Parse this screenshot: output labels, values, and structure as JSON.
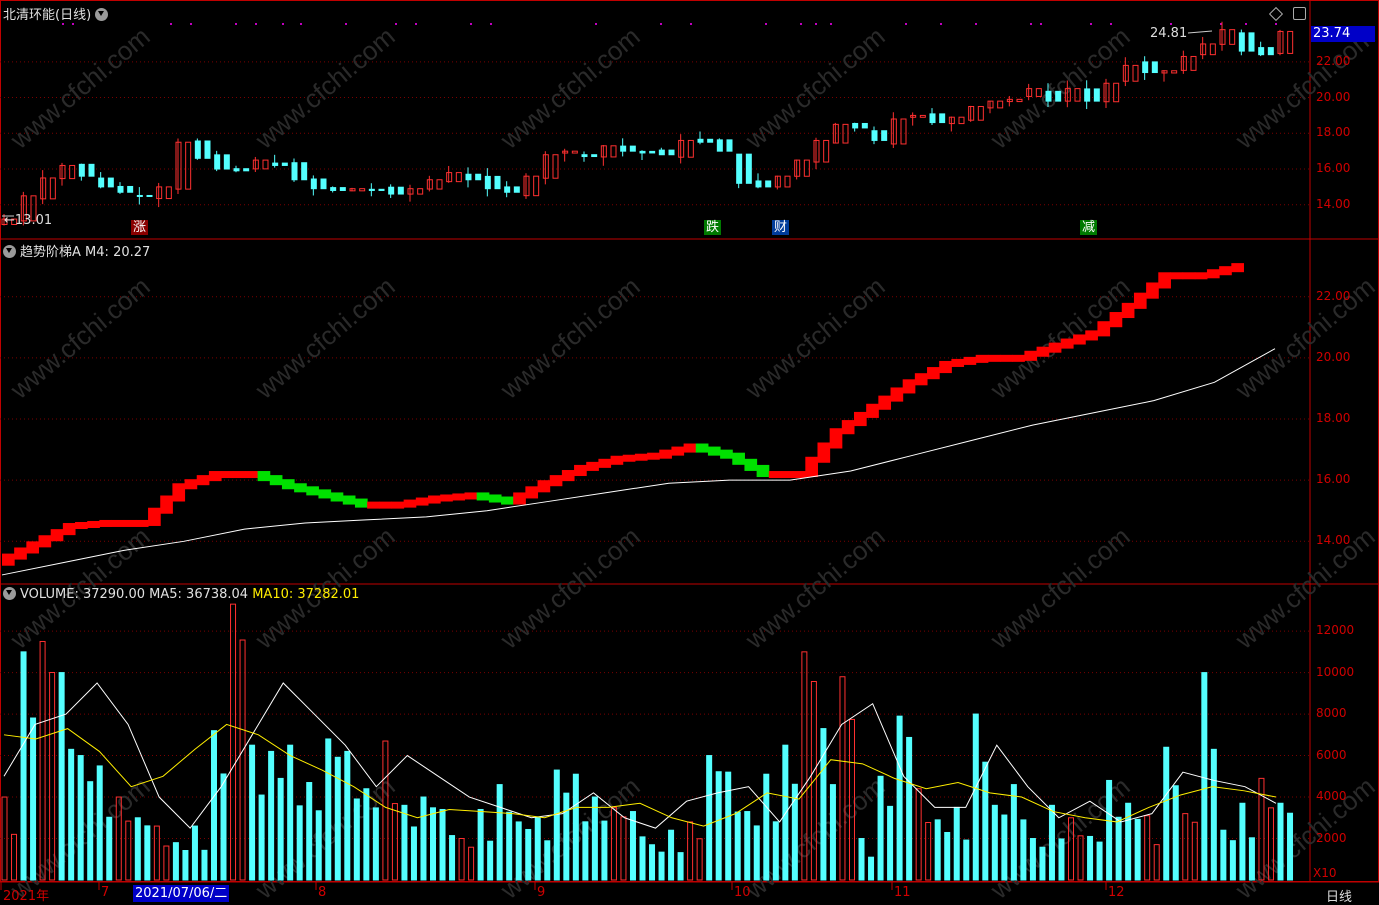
{
  "header": {
    "stock_name": "北清环能",
    "period": "(日线)",
    "panel2_name": "趋势阶梯A",
    "panel2_m4_label": "M4:",
    "panel2_m4_value": "20.27",
    "vol_label": "VOLUME:",
    "vol_value": "37290.00",
    "ma5_label": "MA5:",
    "ma5_value": "36738.04",
    "ma10_label": "MA10:",
    "ma10_value": "37282.01"
  },
  "price_panel": {
    "current_price_tag": "23.74",
    "high_annotation": "24.81",
    "low_annotation": "13.01",
    "y_ticks": [
      "22.00",
      "20.00",
      "18.00",
      "16.00",
      "14.00"
    ],
    "markers": [
      {
        "text": "涨",
        "style": "up"
      },
      {
        "text": "跌",
        "style": "down"
      },
      {
        "text": "财",
        "style": "blue"
      },
      {
        "text": "减",
        "style": "down"
      }
    ]
  },
  "trend_panel": {
    "y_ticks": [
      "22.00",
      "20.00",
      "18.00",
      "16.00",
      "14.00"
    ]
  },
  "volume_panel": {
    "y_ticks": [
      "12000",
      "10000",
      "8000",
      "6000",
      "4000",
      "2000"
    ],
    "unit": "X10"
  },
  "x_axis": {
    "labels": [
      "2021年",
      "7",
      "8",
      "9",
      "10",
      "11",
      "12"
    ],
    "selected_date": "2021/07/06/二",
    "mode": "日线"
  },
  "colors": {
    "up": "#ff3030",
    "down": "#54ffff",
    "trend_up": "#ff0000",
    "trend_down": "#00e000",
    "ma_white": "#ffffff",
    "ma_yellow": "#ffee00",
    "grid": "#7a0000",
    "frame": "#c00000"
  },
  "chart_data": [
    {
      "type": "candlestick",
      "name": "北清环能 日线",
      "y_range": [
        13.0,
        24.9
      ],
      "x_range": [
        "2021-06",
        "2021-12"
      ],
      "close_path": [
        13.2,
        14.5,
        15.5,
        16.2,
        15.6,
        15.0,
        14.7,
        14.5,
        15.0,
        17.5,
        16.6,
        16.0,
        15.9,
        16.5,
        16.2,
        15.4,
        14.9,
        14.8,
        14.9,
        14.8,
        14.6,
        14.9,
        15.4,
        15.8,
        15.4,
        14.9,
        14.7,
        15.6,
        16.8,
        17.0,
        16.7,
        17.3,
        17.0,
        16.9,
        16.8,
        17.6,
        17.5,
        17.0,
        15.2,
        15.0,
        15.6,
        16.5,
        17.6,
        18.5,
        18.3,
        17.6,
        18.8,
        19.0,
        18.6,
        18.9,
        19.5,
        19.8,
        19.9,
        20.5,
        19.8,
        20.5,
        19.8,
        20.8,
        21.8,
        21.4,
        21.5,
        22.3,
        23.0,
        23.8,
        22.6,
        22.4,
        23.7
      ]
    },
    {
      "type": "line",
      "name": "趋势阶梯A",
      "y_range": [
        13.0,
        23.5
      ],
      "step_path": [
        13.3,
        13.9,
        14.5,
        14.6,
        14.6,
        15.8,
        16.2,
        16.2,
        15.8,
        15.5,
        15.2,
        15.2,
        15.4,
        15.5,
        15.3,
        15.9,
        16.4,
        16.7,
        16.8,
        17.1,
        16.8,
        16.2,
        16.2,
        17.6,
        18.4,
        19.2,
        19.8,
        20.0,
        20.0,
        20.4,
        20.8,
        21.7,
        22.7,
        22.7,
        23.0
      ],
      "m4_path": [
        12.9,
        13.3,
        13.7,
        14.0,
        14.4,
        14.6,
        14.7,
        14.8,
        15.0,
        15.3,
        15.6,
        15.9,
        16.0,
        16.0,
        16.3,
        16.8,
        17.3,
        17.8,
        18.2,
        18.6,
        19.2,
        20.3
      ]
    },
    {
      "type": "bar",
      "name": "VOLUME",
      "y_range": [
        0,
        13500
      ],
      "values": [
        4000,
        11000,
        11500,
        10000,
        6000,
        5500,
        4000,
        3000,
        2600,
        1800,
        2600,
        7200,
        13300,
        6500,
        6200,
        6500,
        4700,
        6800,
        6200,
        4400,
        6700,
        3600,
        4000,
        3400,
        2000,
        3400,
        4600,
        2800,
        3000,
        5300,
        5100,
        4000,
        3500,
        3300,
        1700,
        2400,
        2800,
        6000,
        5200,
        3300,
        5100,
        6500,
        11000,
        7300,
        9800,
        2000,
        5000,
        7900,
        4400,
        2900,
        3500,
        8000,
        3600,
        4600,
        2000,
        3600,
        3000,
        2100,
        4800,
        3700,
        3100,
        6400,
        3200,
        10000,
        2400,
        3700,
        4900,
        3700
      ],
      "ma5": [
        5000,
        7500,
        8000,
        9500,
        7500,
        4000,
        2500,
        4500,
        7000,
        9500,
        8000,
        6500,
        4500,
        6000,
        5000,
        4000,
        3500,
        3000,
        3200,
        4200,
        3000,
        2500,
        3800,
        4200,
        4500,
        2800,
        5000,
        7500,
        8500,
        5000,
        3500,
        3500,
        6500,
        4500,
        3000,
        3800,
        2800,
        3200,
        5200,
        4800,
        4500,
        3700
      ],
      "ma10": [
        7000,
        6800,
        7300,
        6200,
        4500,
        5000,
        6300,
        7500,
        7000,
        6000,
        5300,
        4500,
        3500,
        3000,
        3400,
        3300,
        3200,
        3000,
        3500,
        3500,
        3700,
        3000,
        2600,
        3200,
        4200,
        3900,
        5800,
        5600,
        4900,
        4400,
        4700,
        4200,
        4000,
        3300,
        3000,
        2800,
        3500,
        4100,
        4500,
        4300,
        4000
      ]
    }
  ]
}
